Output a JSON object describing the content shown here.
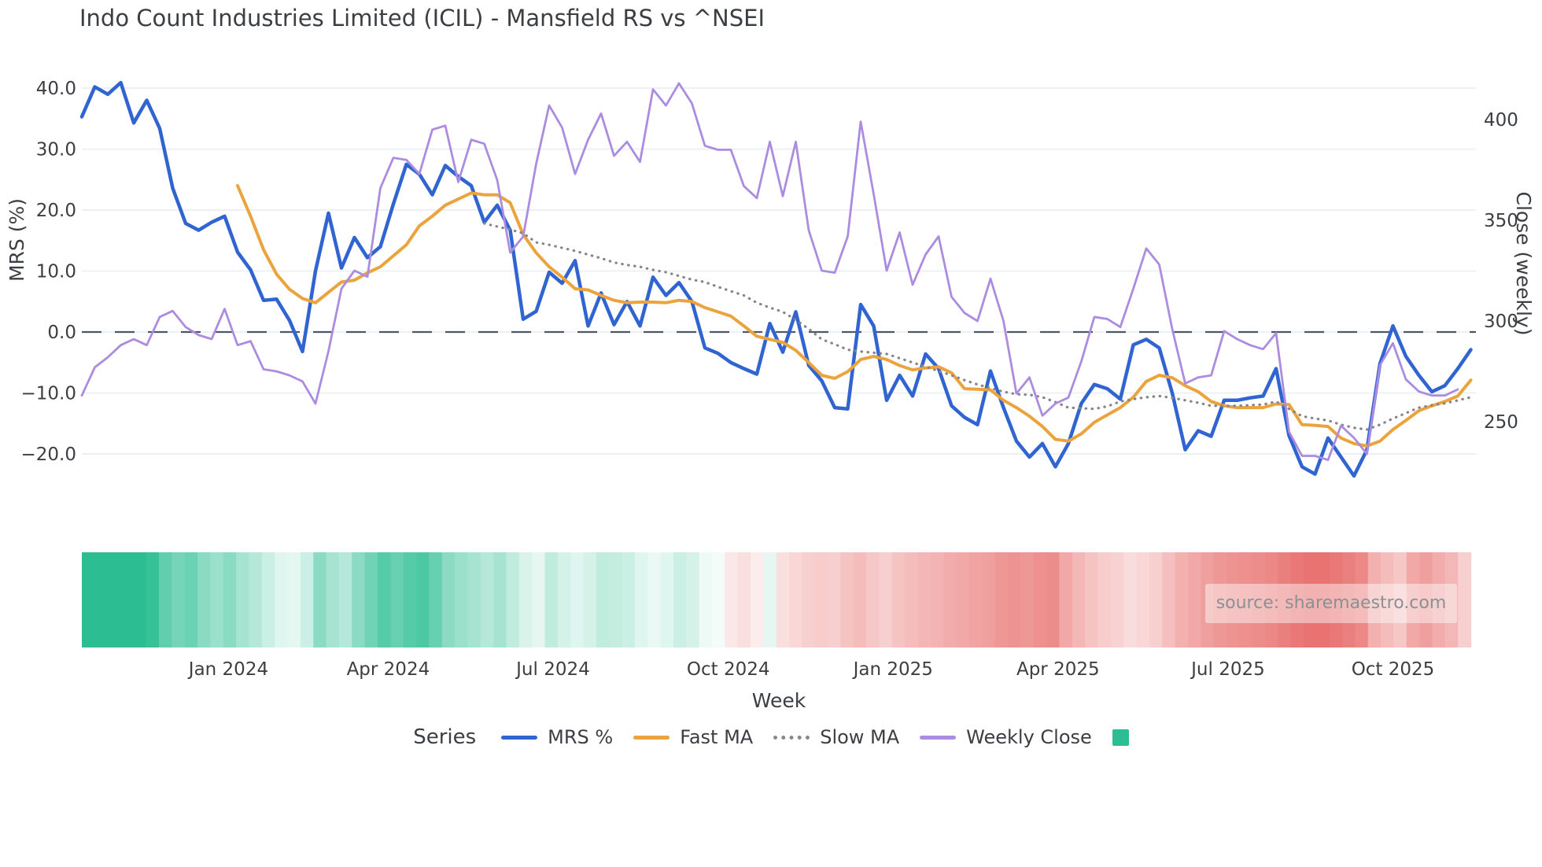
{
  "title": "Indo Count Industries Limited (ICIL) - Mansfield RS vs ^NSEI",
  "source": "source: sharemaestro.com",
  "axes": {
    "left": {
      "label": "MRS (%)"
    },
    "right": {
      "label": "Close (weekly)"
    },
    "x": {
      "label": "Week"
    }
  },
  "legend": {
    "title": "Series",
    "entries": [
      {
        "label": "MRS %",
        "type": "line",
        "color": "#3064d0"
      },
      {
        "label": "Fast MA",
        "type": "line",
        "color": "#eba43d"
      },
      {
        "label": "Slow MA",
        "type": "dotted",
        "color": "#87898f"
      },
      {
        "label": "Weekly Close",
        "type": "line",
        "color": "#ac8ce0"
      },
      {
        "label": "",
        "type": "square",
        "color": "#2cbe92"
      }
    ]
  },
  "chart_data": {
    "type": "line",
    "title": "Indo Count Industries Limited (ICIL) - Mansfield RS vs ^NSEI",
    "xlabel": "Week",
    "x_axis": {
      "total_weeks": 108,
      "tick_labels": [
        "Jan 2024",
        "Apr 2024",
        "Jul 2024",
        "Oct 2024",
        "Jan 2025",
        "Apr 2025",
        "Jul 2025",
        "Oct 2025"
      ],
      "tick_weeks": [
        11.3,
        23.6,
        36.3,
        49.8,
        62.5,
        75.2,
        88.3,
        101
      ]
    },
    "left_axis": {
      "label": "MRS (%)",
      "ticks": [
        40,
        30,
        20,
        10,
        0,
        -10,
        -20
      ],
      "tick_labels": [
        "40.0",
        "30.0",
        "20.0",
        "10.0",
        "0.0",
        "−10.0",
        "−20.0"
      ],
      "ylim": [
        -27,
        42
      ]
    },
    "right_axis": {
      "label": "Close (weekly)",
      "ticks": [
        400,
        350,
        300,
        250
      ],
      "tick_labels": [
        "400",
        "350",
        "300",
        "250"
      ],
      "ylim": [
        228,
        425
      ]
    },
    "reference_line": {
      "axis": "left",
      "value": 0,
      "color": "#4c5868"
    },
    "grid": "horizontal-only",
    "legend_position": "bottom",
    "series": [
      {
        "name": "MRS %",
        "axis": "left",
        "color": "#3064d0",
        "width": 4.5,
        "style": "solid",
        "values": [
          35.3,
          40.2,
          39,
          40.9,
          34.3,
          38,
          33.4,
          23.6,
          17.8,
          16.7,
          18,
          19,
          13.1,
          10.2,
          5.2,
          5.4,
          1.9,
          -3.2,
          10,
          19.5,
          10.5,
          15.5,
          12.2,
          14,
          21,
          27.5,
          25.9,
          22.5,
          27.3,
          25.5,
          24,
          18,
          20.8,
          16.7,
          2.1,
          3.4,
          9.8,
          8,
          11.7,
          1,
          6.4,
          1.2,
          5,
          1,
          9,
          6,
          8.1,
          5,
          -2.6,
          -3.5,
          -5,
          -6,
          -6.9,
          1.4,
          -3.3,
          3.3,
          -5.5,
          -8,
          -12.4,
          -12.6,
          4.5,
          1,
          -11.2,
          -7.1,
          -10.5,
          -3.6,
          -6,
          -12.1,
          -14,
          -15.2,
          -6.4,
          -12.4,
          -17.9,
          -20.5,
          -18.3,
          -22.1,
          -18.3,
          -11.7,
          -8.6,
          -9.3,
          -11,
          -2.1,
          -1.2,
          -2.6,
          -10,
          -19.3,
          -16.2,
          -17.1,
          -11.2,
          -11.2,
          -10.8,
          -10.5,
          -6,
          -17,
          -22.1,
          -23.3,
          -17.4,
          -20.5,
          -23.6,
          -19.3,
          -5.2,
          1,
          -4,
          -7.1,
          -9.8,
          -8.8,
          -6,
          -2.9
        ]
      },
      {
        "name": "Fast MA",
        "axis": "left",
        "color": "#eba43d",
        "width": 4,
        "style": "solid",
        "values": [
          null,
          null,
          null,
          null,
          null,
          null,
          null,
          null,
          null,
          null,
          null,
          null,
          24,
          19,
          13.5,
          9.5,
          7,
          5.5,
          4.8,
          6.5,
          8.2,
          8.5,
          9.7,
          10.7,
          12.5,
          14.3,
          17.4,
          19,
          20.8,
          21.8,
          22.8,
          22.5,
          22.5,
          21.2,
          16,
          13,
          10.7,
          9,
          7.1,
          6.9,
          6,
          5.2,
          4.8,
          4.9,
          4.9,
          4.8,
          5.2,
          5,
          4,
          3.3,
          2.6,
          1,
          -0.7,
          -1.2,
          -1.7,
          -3,
          -5,
          -7.1,
          -7.6,
          -6.5,
          -4.5,
          -4,
          -4.5,
          -5.5,
          -6.2,
          -5.9,
          -5.7,
          -6.7,
          -9.3,
          -9.4,
          -9.5,
          -11.2,
          -12.4,
          -13.8,
          -15.5,
          -17.6,
          -17.9,
          -16.7,
          -14.8,
          -13.6,
          -12.4,
          -10.7,
          -8.1,
          -7.1,
          -7.5,
          -8.8,
          -9.8,
          -11.4,
          -12.1,
          -12.4,
          -12.4,
          -12.4,
          -11.8,
          -11.9,
          -15.2,
          -15.3,
          -15.5,
          -17.4,
          -18.3,
          -18.7,
          -17.9,
          -16,
          -14.5,
          -12.9,
          -12.1,
          -11.4,
          -10.5,
          -7.9
        ]
      },
      {
        "name": "Slow MA",
        "axis": "left",
        "color": "#84868c",
        "width": 3.2,
        "style": "dotted",
        "values": [
          null,
          null,
          null,
          null,
          null,
          null,
          null,
          null,
          null,
          null,
          null,
          null,
          null,
          null,
          null,
          null,
          null,
          null,
          null,
          null,
          null,
          null,
          null,
          null,
          null,
          null,
          null,
          null,
          null,
          null,
          null,
          17.8,
          17.3,
          16.8,
          16.2,
          14.7,
          14.3,
          13.8,
          13.3,
          12.7,
          12.1,
          11.4,
          11,
          10.7,
          10.2,
          9.8,
          9.2,
          8.6,
          8.2,
          7.4,
          6.7,
          6,
          4.8,
          4,
          3.3,
          2,
          0.5,
          -1.2,
          -2,
          -2.9,
          -3.2,
          -3.4,
          -3.6,
          -4.3,
          -5,
          -5.7,
          -6.4,
          -7.1,
          -7.9,
          -8.6,
          -9.2,
          -9.8,
          -10.2,
          -10.3,
          -10.7,
          -11.5,
          -12.4,
          -12.5,
          -12.6,
          -12.2,
          -11.4,
          -11,
          -10.7,
          -10.5,
          -10.8,
          -11.2,
          -11.6,
          -12.1,
          -12.1,
          -12.1,
          -12,
          -11.9,
          -11.4,
          -12.6,
          -13.8,
          -14.2,
          -14.5,
          -15.2,
          -15.7,
          -16,
          -15.2,
          -14.2,
          -13.3,
          -12.4,
          -12,
          -11.7,
          -11.2,
          -10.7
        ]
      },
      {
        "name": "Weekly Close",
        "axis": "right",
        "color": "#ac8ce0",
        "width": 2.8,
        "style": "solid",
        "values": [
          263,
          277,
          282,
          288,
          291,
          288,
          302,
          305,
          297,
          293,
          291,
          306,
          288,
          290,
          276,
          275,
          273,
          270,
          259,
          285,
          316,
          325,
          322,
          366,
          381,
          380,
          373,
          395,
          397,
          369,
          390,
          388,
          370,
          334,
          342,
          378,
          407,
          396,
          373,
          390,
          403,
          382,
          389,
          379,
          415,
          407,
          418,
          408,
          387,
          385,
          385,
          367,
          361,
          389,
          362,
          389,
          345,
          325,
          324,
          342,
          399,
          363,
          325,
          344,
          318,
          333,
          342,
          312,
          304,
          300,
          321,
          300,
          264,
          272,
          253,
          259,
          262,
          280,
          302,
          301,
          297,
          316,
          336,
          328,
          296,
          269,
          272,
          273,
          295,
          291,
          288,
          286,
          294,
          245,
          233,
          233,
          231,
          248,
          242,
          234,
          278,
          289,
          271,
          265,
          263,
          263,
          266,
          null
        ]
      }
    ],
    "heatmap": {
      "description": "weekly sentiment strip below chart, green=positive red=negative",
      "positive_color": "#2cbe92",
      "negative_color": "#e5605e",
      "values": [
        1,
        1,
        1,
        1,
        1,
        0.95,
        0.75,
        0.65,
        0.7,
        0.55,
        0.48,
        0.55,
        0.42,
        0.35,
        0.25,
        0.15,
        0.13,
        0.25,
        0.55,
        0.42,
        0.35,
        0.55,
        0.68,
        0.8,
        0.72,
        0.8,
        0.85,
        0.72,
        0.55,
        0.48,
        0.42,
        0.35,
        0.42,
        0.3,
        0.18,
        0.12,
        0.3,
        0.2,
        0.15,
        0.2,
        0.3,
        0.28,
        0.25,
        0.15,
        0.1,
        0.15,
        0.25,
        0.2,
        0.08,
        0.05,
        -0.15,
        -0.2,
        -0.12,
        0.12,
        -0.2,
        -0.25,
        -0.3,
        -0.32,
        -0.3,
        -0.38,
        -0.42,
        -0.35,
        -0.3,
        -0.38,
        -0.42,
        -0.45,
        -0.48,
        -0.52,
        -0.55,
        -0.58,
        -0.6,
        -0.65,
        -0.68,
        -0.65,
        -0.7,
        -0.72,
        -0.55,
        -0.45,
        -0.38,
        -0.32,
        -0.28,
        -0.22,
        -0.25,
        -0.3,
        -0.4,
        -0.5,
        -0.55,
        -0.6,
        -0.65,
        -0.68,
        -0.7,
        -0.72,
        -0.75,
        -0.8,
        -0.85,
        -0.88,
        -0.88,
        -0.85,
        -0.8,
        -0.75,
        -0.5,
        -0.42,
        -0.35,
        -0.55,
        -0.6,
        -0.52,
        -0.45,
        -0.3
      ]
    }
  }
}
